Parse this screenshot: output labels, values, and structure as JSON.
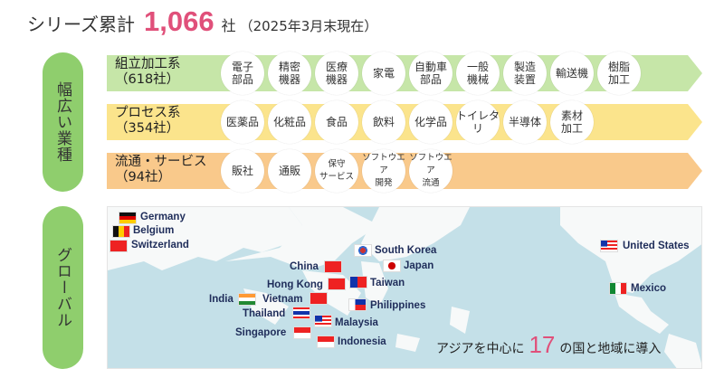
{
  "header": {
    "prefix": "シリーズ累計",
    "total": "1,066",
    "unit": "社",
    "note": "（2025年3月末現在）"
  },
  "sections": {
    "industry": "幅広い業種",
    "global": "グローバル"
  },
  "colors": {
    "accent": "#e0507a",
    "pill": "#8fce6d",
    "assembly": "#c6e6a8",
    "process": "#fbe48c",
    "service": "#f9c98b",
    "map_sea": "#c4e0e8"
  },
  "industries": [
    {
      "label": "組立加工系\n（618社）",
      "items": [
        "電子\n部品",
        "精密\n機器",
        "医療\n機器",
        "家電",
        "自動車\n部品",
        "一般\n機械",
        "製造\n装置",
        "輸送機",
        "樹脂\n加工"
      ]
    },
    {
      "label": "プロセス系\n（354社）",
      "items": [
        "医薬品",
        "化粧品",
        "食品",
        "飲料",
        "化学品",
        "トイレタリ",
        "半導体",
        "素材\n加工"
      ]
    },
    {
      "label": "流通・サービス\n（94社）",
      "items": [
        "販社",
        "通販",
        "保守\nサービス",
        "ソフトウエア\n開発",
        "ソフトウエア\n流通"
      ]
    }
  ],
  "countries": [
    "Germany",
    "Belgium",
    "Switzerland",
    "South Korea",
    "Japan",
    "China",
    "Hong Kong",
    "Taiwan",
    "India",
    "Vietnam",
    "Philippines",
    "Thailand",
    "Malaysia",
    "Singapore",
    "Indonesia",
    "United States",
    "Mexico"
  ],
  "summary": {
    "before": "アジアを中心に",
    "count": "17",
    "after": "の国と地域に導入"
  }
}
